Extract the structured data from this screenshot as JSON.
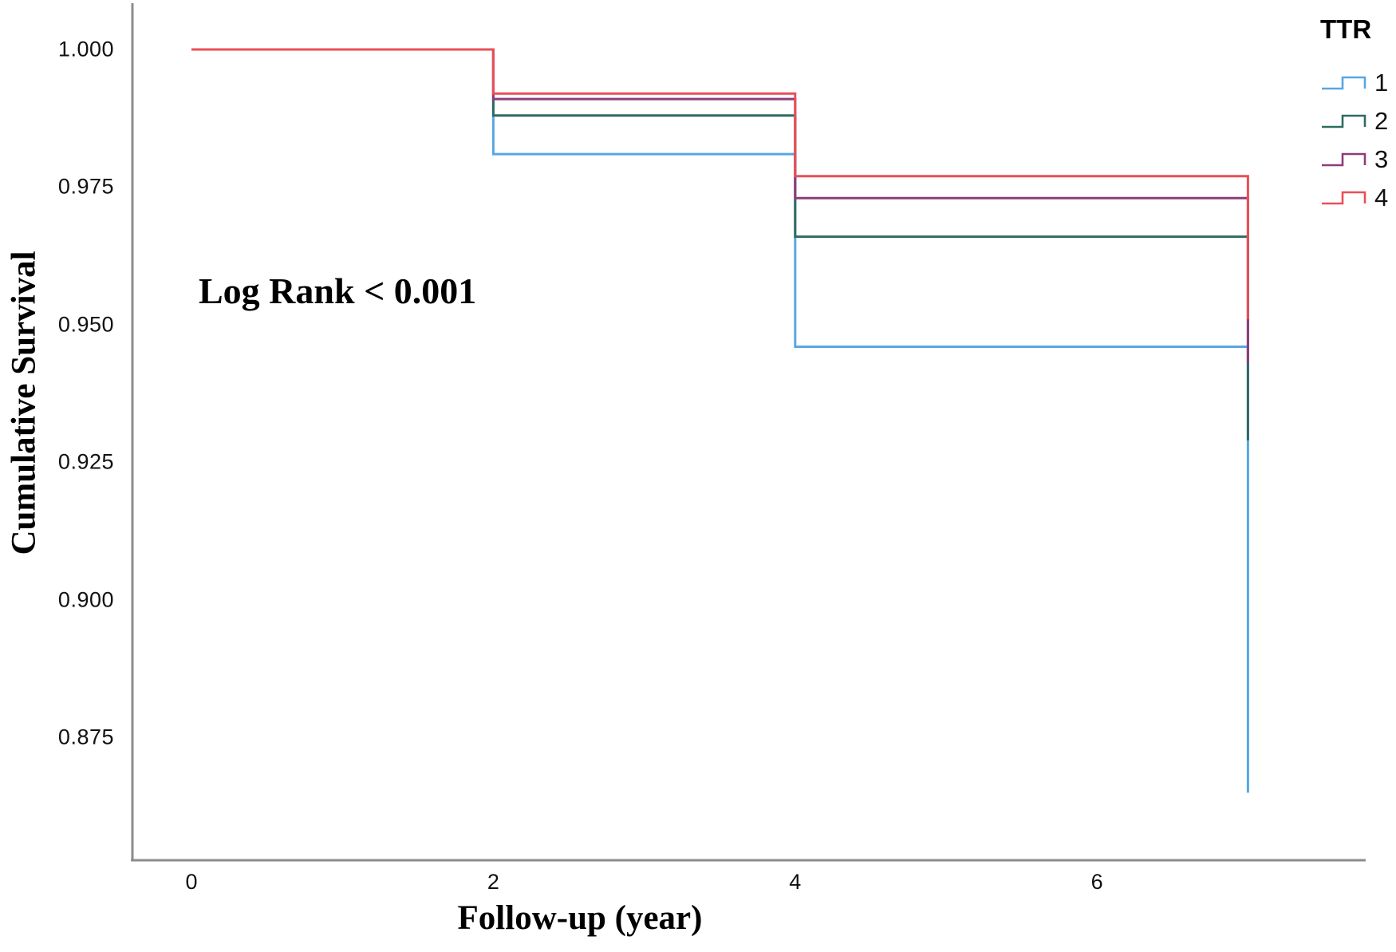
{
  "chart_data": {
    "type": "line",
    "subtype": "kaplan-meier-step",
    "title": "",
    "xlabel": "Follow-up (year)",
    "ylabel": "Cumulative Survival",
    "annotation": "Log Rank < 0.001",
    "legend_title": "TTR",
    "legend_position": "top-right",
    "grid": false,
    "xlim": [
      -0.4,
      7.8
    ],
    "ylim": [
      0.853,
      1.008
    ],
    "x_ticks": [
      0,
      2,
      4,
      6
    ],
    "x_tick_labels": [
      "0",
      "2",
      "4",
      "6"
    ],
    "y_ticks": [
      1.0,
      0.975,
      0.95,
      0.925,
      0.9,
      0.875
    ],
    "y_tick_labels": [
      "1.000",
      "0.975",
      "0.950",
      "0.925",
      "0.900",
      "0.875"
    ],
    "axis_color": "#8c8c8c",
    "series": [
      {
        "name": "1",
        "color": "#58a7e2",
        "points": [
          [
            0,
            1.0
          ],
          [
            2,
            1.0
          ],
          [
            2,
            0.981
          ],
          [
            4,
            0.981
          ],
          [
            4,
            0.946
          ],
          [
            7,
            0.946
          ],
          [
            7,
            0.865
          ]
        ]
      },
      {
        "name": "2",
        "color": "#2f6b60",
        "points": [
          [
            0,
            1.0
          ],
          [
            2,
            1.0
          ],
          [
            2,
            0.988
          ],
          [
            4,
            0.988
          ],
          [
            4,
            0.966
          ],
          [
            7,
            0.966
          ],
          [
            7,
            0.929
          ]
        ]
      },
      {
        "name": "3",
        "color": "#8e3c7c",
        "points": [
          [
            0,
            1.0
          ],
          [
            2,
            1.0
          ],
          [
            2,
            0.991
          ],
          [
            4,
            0.991
          ],
          [
            4,
            0.973
          ],
          [
            7,
            0.973
          ],
          [
            7,
            0.943
          ]
        ]
      },
      {
        "name": "4",
        "color": "#e94f58",
        "points": [
          [
            0,
            1.0
          ],
          [
            2,
            1.0
          ],
          [
            2,
            0.992
          ],
          [
            4,
            0.992
          ],
          [
            4,
            0.977
          ],
          [
            7,
            0.977
          ],
          [
            7,
            0.951
          ]
        ]
      }
    ]
  }
}
